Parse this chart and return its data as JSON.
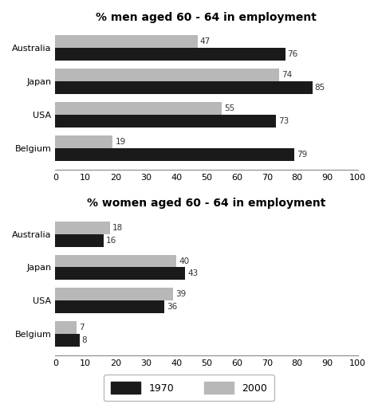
{
  "men_title": "% men aged 60 - 64 in employment",
  "women_title": "% women aged 60 - 64 in employment",
  "countries": [
    "Australia",
    "Japan",
    "USA",
    "Belgium"
  ],
  "men_1970": [
    76,
    85,
    73,
    79
  ],
  "men_2000": [
    47,
    74,
    55,
    19
  ],
  "women_1970": [
    16,
    43,
    36,
    8
  ],
  "women_2000": [
    18,
    40,
    39,
    7
  ],
  "color_1970": "#1a1a1a",
  "color_2000": "#b8b8b8",
  "xlim": [
    0,
    100
  ],
  "xticks": [
    0,
    10,
    20,
    30,
    40,
    50,
    60,
    70,
    80,
    90,
    100
  ],
  "bar_height": 0.38,
  "label_fontsize": 7.5,
  "title_fontsize": 10,
  "tick_fontsize": 8,
  "legend_1970": "1970",
  "legend_2000": "2000",
  "bg_color": "#ffffff"
}
